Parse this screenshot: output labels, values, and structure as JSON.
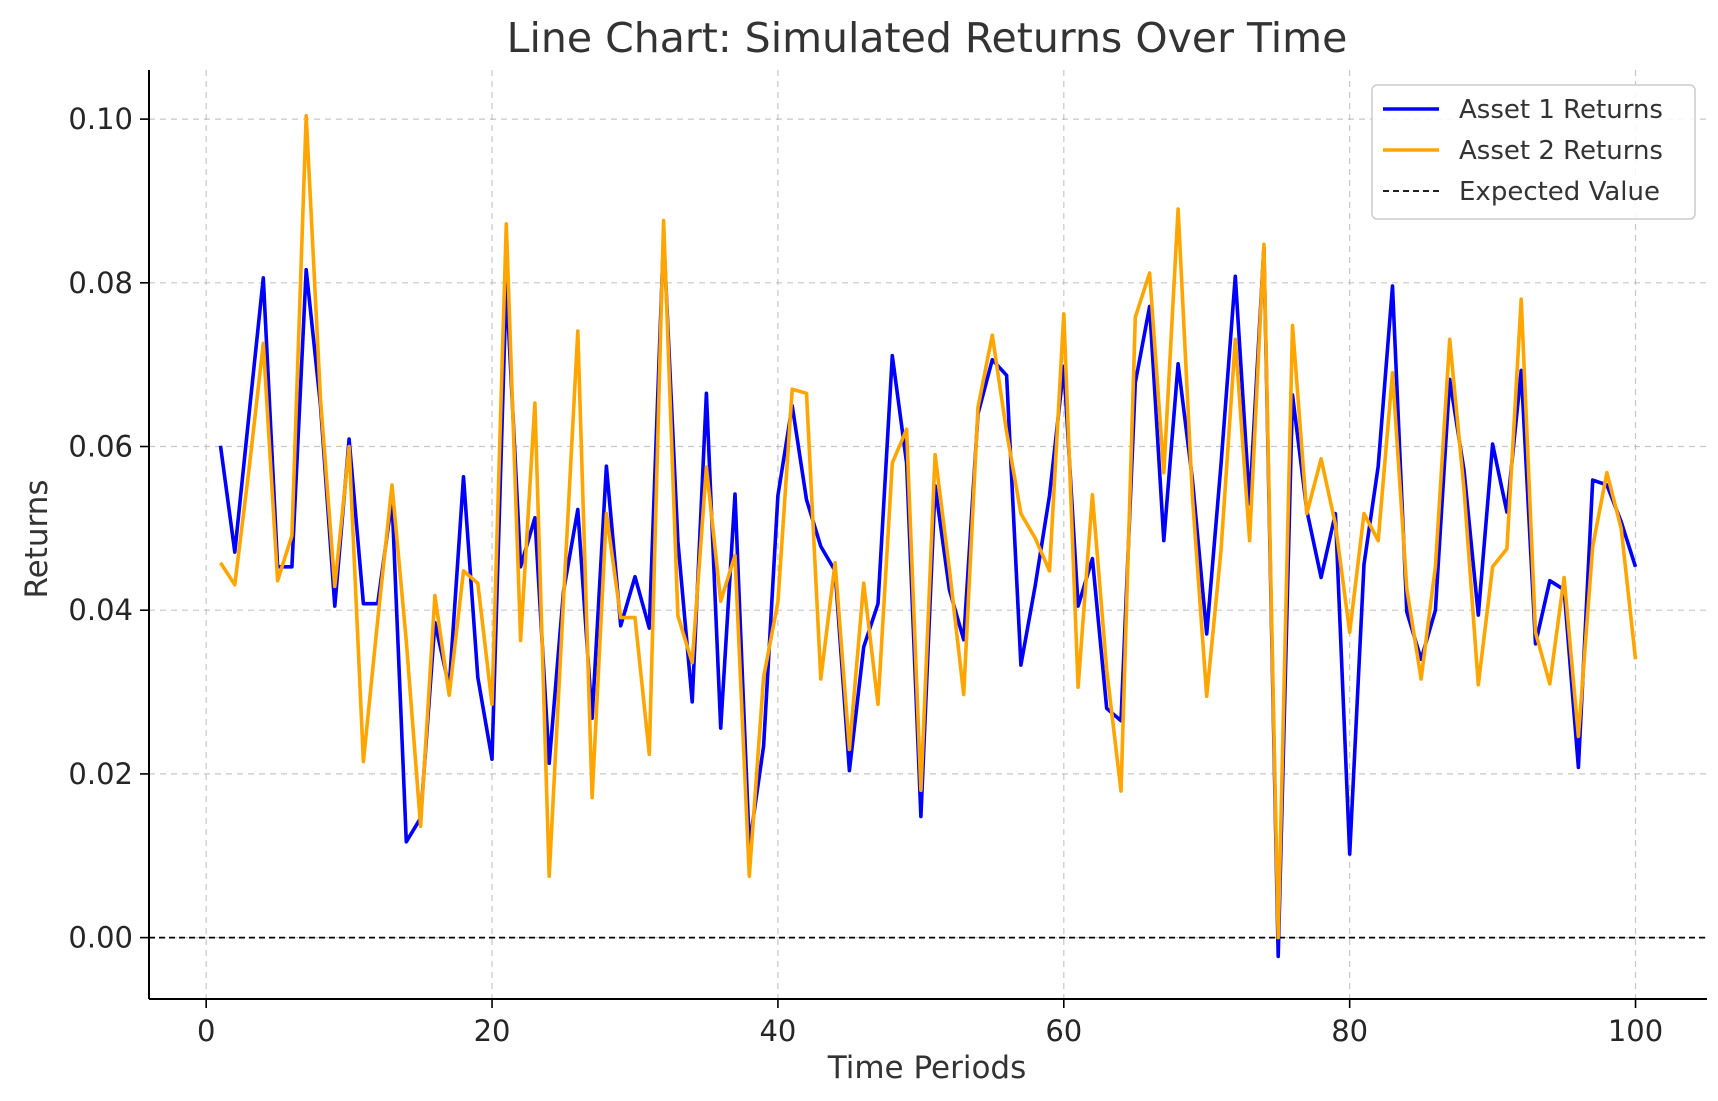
{
  "chart_data": {
    "type": "line",
    "title": "Line Chart: Simulated Returns Over Time",
    "xlabel": "Time Periods",
    "ylabel": "Returns",
    "xlim": [
      -4,
      105
    ],
    "ylim": [
      -0.0075,
      0.106
    ],
    "xticks": [
      0,
      20,
      40,
      60,
      80,
      100
    ],
    "xtick_labels": [
      "0",
      "20",
      "40",
      "60",
      "80",
      "100"
    ],
    "yticks": [
      0.0,
      0.02,
      0.04,
      0.06,
      0.08,
      0.1
    ],
    "ytick_labels": [
      "0.00",
      "0.02",
      "0.04",
      "0.06",
      "0.08",
      "0.10"
    ],
    "grid": true,
    "legend_position": "top-right",
    "x": [
      1,
      2,
      3,
      4,
      5,
      6,
      7,
      8,
      9,
      10,
      11,
      12,
      13,
      14,
      15,
      16,
      17,
      18,
      19,
      20,
      21,
      22,
      23,
      24,
      25,
      26,
      27,
      28,
      29,
      30,
      31,
      32,
      33,
      34,
      35,
      36,
      37,
      38,
      39,
      40,
      41,
      42,
      43,
      44,
      45,
      46,
      47,
      48,
      49,
      50,
      51,
      52,
      53,
      54,
      55,
      56,
      57,
      58,
      59,
      60,
      61,
      62,
      63,
      64,
      65,
      66,
      67,
      68,
      69,
      70,
      71,
      72,
      73,
      74,
      75,
      76,
      77,
      78,
      79,
      80,
      81,
      82,
      83,
      84,
      85,
      86,
      87,
      88,
      89,
      90,
      91,
      92,
      93,
      94,
      95,
      96,
      97,
      98,
      99,
      100
    ],
    "series": [
      {
        "name": "Asset 1 Returns",
        "color": "#0000ff",
        "values": [
          0.0601,
          0.0471,
          0.064,
          0.0806,
          0.0453,
          0.0453,
          0.0816,
          0.065,
          0.0405,
          0.0609,
          0.0408,
          0.0408,
          0.0535,
          0.0117,
          0.0146,
          0.0385,
          0.0306,
          0.0563,
          0.0318,
          0.0218,
          0.08,
          0.0453,
          0.0513,
          0.0213,
          0.0423,
          0.0523,
          0.0268,
          0.0576,
          0.0381,
          0.0441,
          0.0378,
          0.0858,
          0.0484,
          0.0288,
          0.0665,
          0.0256,
          0.0542,
          0.0112,
          0.0234,
          0.054,
          0.065,
          0.0535,
          0.0478,
          0.0448,
          0.0204,
          0.0355,
          0.0408,
          0.0711,
          0.058,
          0.0148,
          0.0552,
          0.0425,
          0.0364,
          0.064,
          0.0706,
          0.0687,
          0.0333,
          0.043,
          0.054,
          0.0698,
          0.0405,
          0.0463,
          0.028,
          0.0265,
          0.0678,
          0.0771,
          0.0485,
          0.0701,
          0.056,
          0.0371,
          0.0578,
          0.0808,
          0.053,
          0.0843,
          -0.0023,
          0.0663,
          0.0522,
          0.044,
          0.0518,
          0.0102,
          0.0456,
          0.0576,
          0.0796,
          0.0398,
          0.034,
          0.04,
          0.0682,
          0.0571,
          0.0394,
          0.0603,
          0.052,
          0.0693,
          0.0359,
          0.0436,
          0.0425,
          0.0208,
          0.0559,
          0.0553,
          0.0508,
          0.0453
        ]
      },
      {
        "name": "Asset 2 Returns",
        "color": "#ffa500",
        "values": [
          0.0458,
          0.0431,
          0.0573,
          0.0726,
          0.0436,
          0.0491,
          0.1004,
          0.0658,
          0.0429,
          0.06,
          0.0215,
          0.0388,
          0.0553,
          0.0362,
          0.0136,
          0.0418,
          0.0296,
          0.0448,
          0.0433,
          0.0285,
          0.0872,
          0.0363,
          0.0653,
          0.0075,
          0.0413,
          0.0741,
          0.0171,
          0.0518,
          0.0391,
          0.0391,
          0.0224,
          0.0876,
          0.0393,
          0.0336,
          0.0575,
          0.0411,
          0.0467,
          0.0075,
          0.0318,
          0.041,
          0.067,
          0.0665,
          0.0316,
          0.0458,
          0.023,
          0.0433,
          0.0285,
          0.058,
          0.0621,
          0.018,
          0.059,
          0.045,
          0.0297,
          0.0648,
          0.0736,
          0.0618,
          0.0518,
          0.0488,
          0.0448,
          0.0762,
          0.0306,
          0.0541,
          0.0327,
          0.0179,
          0.0758,
          0.0812,
          0.0568,
          0.089,
          0.0539,
          0.0295,
          0.0473,
          0.0731,
          0.0485,
          0.0847,
          0.0,
          0.0748,
          0.0518,
          0.0585,
          0.0505,
          0.0373,
          0.0518,
          0.0485,
          0.069,
          0.0426,
          0.0316,
          0.0453,
          0.0731,
          0.0548,
          0.0309,
          0.0453,
          0.0475,
          0.078,
          0.0373,
          0.031,
          0.044,
          0.0246,
          0.0478,
          0.0568,
          0.05,
          0.034
        ]
      }
    ],
    "reference_line": {
      "name": "Expected Value",
      "y": 0.0,
      "color": "#000000",
      "style": "dashed"
    }
  }
}
